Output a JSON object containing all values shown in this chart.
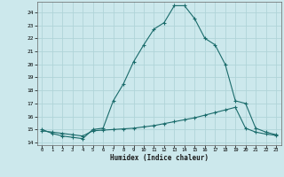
{
  "xlabel": "Humidex (Indice chaleur)",
  "background_color": "#cce8ec",
  "grid_color": "#b0d4d8",
  "line_color": "#1a6b6b",
  "xlim": [
    -0.5,
    23.5
  ],
  "ylim": [
    13.8,
    24.8
  ],
  "xticks": [
    0,
    1,
    2,
    3,
    4,
    5,
    6,
    7,
    8,
    9,
    10,
    11,
    12,
    13,
    14,
    15,
    16,
    17,
    18,
    19,
    20,
    21,
    22,
    23
  ],
  "yticks": [
    14,
    15,
    16,
    17,
    18,
    19,
    20,
    21,
    22,
    23,
    24
  ],
  "curve1_x": [
    0,
    1,
    2,
    3,
    4,
    5,
    6,
    7,
    8,
    9,
    10,
    11,
    12,
    13,
    14,
    15,
    16,
    17,
    18,
    19,
    20,
    21,
    22,
    23
  ],
  "curve1_y": [
    15.0,
    14.7,
    14.5,
    14.4,
    14.3,
    15.0,
    15.1,
    17.2,
    18.5,
    20.2,
    21.5,
    22.7,
    23.2,
    24.5,
    24.5,
    23.5,
    22.0,
    21.5,
    20.0,
    17.2,
    17.0,
    15.1,
    14.8,
    14.6
  ],
  "curve2_x": [
    0,
    1,
    2,
    3,
    4,
    5,
    6,
    7,
    8,
    9,
    10,
    11,
    12,
    13,
    14,
    15,
    16,
    17,
    18,
    19,
    20,
    21,
    22,
    23
  ],
  "curve2_y": [
    14.9,
    14.8,
    14.7,
    14.6,
    14.5,
    14.9,
    14.95,
    15.0,
    15.05,
    15.1,
    15.2,
    15.3,
    15.45,
    15.6,
    15.75,
    15.9,
    16.1,
    16.3,
    16.5,
    16.7,
    15.1,
    14.8,
    14.65,
    14.55
  ]
}
